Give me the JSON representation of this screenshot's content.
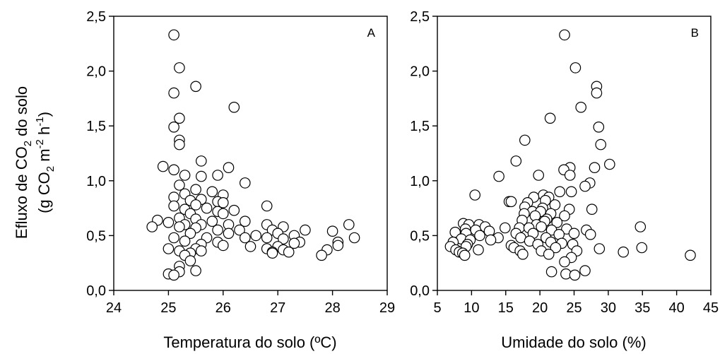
{
  "colors": {
    "marker_fill": "#ffffff",
    "marker_edge": "#000000",
    "axes": "#000000"
  },
  "ylabel": {
    "line1": {
      "prefix": "Efluxo de CO",
      "sub": "2",
      "suffix": " do solo"
    },
    "line2": {
      "open": "(g CO",
      "sub": "2",
      "mid1": " m",
      "sup1": "-2",
      "mid2": " h",
      "sup2": "-1",
      "close": ")"
    }
  },
  "chart_data": [
    {
      "type": "scatter",
      "panel": "A",
      "xlabel": "Temperatura do solo (ºC)",
      "xlim": [
        24,
        29
      ],
      "ylim": [
        0,
        2.5
      ],
      "xticks": [
        "24",
        "25",
        "26",
        "27",
        "28",
        "29"
      ],
      "yticks": [
        "0,0",
        "0,5",
        "1,0",
        "1,5",
        "2,0",
        "2,5"
      ],
      "grid": false,
      "points": [
        [
          25.1,
          2.33
        ],
        [
          25.2,
          2.03
        ],
        [
          25.1,
          1.8
        ],
        [
          25.5,
          1.86
        ],
        [
          26.2,
          1.67
        ],
        [
          25.2,
          1.57
        ],
        [
          25.1,
          1.49
        ],
        [
          25.2,
          1.37
        ],
        [
          25.2,
          1.33
        ],
        [
          25.6,
          1.18
        ],
        [
          24.9,
          1.13
        ],
        [
          25.1,
          1.1
        ],
        [
          25.3,
          1.05
        ],
        [
          25.6,
          1.04
        ],
        [
          25.9,
          1.05
        ],
        [
          26.1,
          1.12
        ],
        [
          26.4,
          0.98
        ],
        [
          25.2,
          0.96
        ],
        [
          25.5,
          0.92
        ],
        [
          25.8,
          0.9
        ],
        [
          25.3,
          0.88
        ],
        [
          26.0,
          0.87
        ],
        [
          25.1,
          0.85
        ],
        [
          25.6,
          0.83
        ],
        [
          25.4,
          0.82
        ],
        [
          25.9,
          0.81
        ],
        [
          26.0,
          0.8
        ],
        [
          25.1,
          0.77
        ],
        [
          25.5,
          0.78
        ],
        [
          25.7,
          0.75
        ],
        [
          25.3,
          0.74
        ],
        [
          26.2,
          0.73
        ],
        [
          26.8,
          0.77
        ],
        [
          25.9,
          0.72
        ],
        [
          25.4,
          0.7
        ],
        [
          26.0,
          0.7
        ],
        [
          25.2,
          0.66
        ],
        [
          24.8,
          0.64
        ],
        [
          25.5,
          0.65
        ],
        [
          25.8,
          0.63
        ],
        [
          26.4,
          0.63
        ],
        [
          25.0,
          0.62
        ],
        [
          25.3,
          0.6
        ],
        [
          25.6,
          0.6
        ],
        [
          26.1,
          0.6
        ],
        [
          26.8,
          0.6
        ],
        [
          27.1,
          0.58
        ],
        [
          28.3,
          0.6
        ],
        [
          24.7,
          0.58
        ],
        [
          25.2,
          0.58
        ],
        [
          25.5,
          0.57
        ],
        [
          25.9,
          0.55
        ],
        [
          26.3,
          0.55
        ],
        [
          26.9,
          0.55
        ],
        [
          27.0,
          0.52
        ],
        [
          27.5,
          0.55
        ],
        [
          28.0,
          0.54
        ],
        [
          25.4,
          0.52
        ],
        [
          26.1,
          0.52
        ],
        [
          26.6,
          0.5
        ],
        [
          27.3,
          0.5
        ],
        [
          25.1,
          0.48
        ],
        [
          25.7,
          0.48
        ],
        [
          26.4,
          0.48
        ],
        [
          26.8,
          0.48
        ],
        [
          27.1,
          0.47
        ],
        [
          28.4,
          0.48
        ],
        [
          25.3,
          0.45
        ],
        [
          25.9,
          0.44
        ],
        [
          27.4,
          0.44
        ],
        [
          27.3,
          0.43
        ],
        [
          28.1,
          0.44
        ],
        [
          25.6,
          0.42
        ],
        [
          26.0,
          0.41
        ],
        [
          26.5,
          0.4
        ],
        [
          27.0,
          0.4
        ],
        [
          28.1,
          0.41
        ],
        [
          25.0,
          0.38
        ],
        [
          25.5,
          0.38
        ],
        [
          26.8,
          0.38
        ],
        [
          27.1,
          0.37
        ],
        [
          27.9,
          0.37
        ],
        [
          25.2,
          0.36
        ],
        [
          25.6,
          0.36
        ],
        [
          26.9,
          0.35
        ],
        [
          27.2,
          0.35
        ],
        [
          25.4,
          0.34
        ],
        [
          26.9,
          0.34
        ],
        [
          27.8,
          0.32
        ],
        [
          25.3,
          0.32
        ],
        [
          25.4,
          0.27
        ],
        [
          25.2,
          0.22
        ],
        [
          25.0,
          0.15
        ],
        [
          25.2,
          0.17
        ],
        [
          25.5,
          0.18
        ],
        [
          25.1,
          0.14
        ]
      ]
    },
    {
      "type": "scatter",
      "panel": "B",
      "xlabel": "Umidade do solo (%)",
      "xlim": [
        5,
        45
      ],
      "ylim": [
        0,
        2.5
      ],
      "xticks": [
        "5",
        "10",
        "15",
        "20",
        "25",
        "30",
        "35",
        "40",
        "45"
      ],
      "yticks": [
        "0,0",
        "0,5",
        "1,0",
        "1,5",
        "2,0",
        "2,5"
      ],
      "grid": false,
      "points": [
        [
          23.6,
          2.33
        ],
        [
          25.2,
          2.03
        ],
        [
          28.3,
          1.86
        ],
        [
          28.3,
          1.8
        ],
        [
          26.0,
          1.67
        ],
        [
          21.5,
          1.57
        ],
        [
          28.6,
          1.49
        ],
        [
          17.8,
          1.37
        ],
        [
          28.9,
          1.33
        ],
        [
          16.5,
          1.18
        ],
        [
          30.2,
          1.15
        ],
        [
          24.4,
          1.12
        ],
        [
          23.5,
          1.1
        ],
        [
          28.0,
          1.12
        ],
        [
          19.8,
          1.05
        ],
        [
          24.4,
          1.05
        ],
        [
          14.0,
          1.04
        ],
        [
          27.3,
          0.98
        ],
        [
          26.6,
          0.95
        ],
        [
          22.9,
          0.9
        ],
        [
          24.6,
          0.9
        ],
        [
          20.5,
          0.87
        ],
        [
          21.3,
          0.85
        ],
        [
          10.5,
          0.87
        ],
        [
          19.1,
          0.85
        ],
        [
          20.8,
          0.82
        ],
        [
          15.5,
          0.81
        ],
        [
          15.8,
          0.81
        ],
        [
          18.2,
          0.8
        ],
        [
          22.2,
          0.78
        ],
        [
          17.8,
          0.76
        ],
        [
          20.4,
          0.75
        ],
        [
          24.3,
          0.74
        ],
        [
          27.6,
          0.74
        ],
        [
          18.9,
          0.72
        ],
        [
          20.1,
          0.72
        ],
        [
          21.6,
          0.7
        ],
        [
          17.7,
          0.7
        ],
        [
          19.3,
          0.68
        ],
        [
          23.6,
          0.68
        ],
        [
          21.0,
          0.65
        ],
        [
          17.4,
          0.64
        ],
        [
          20.7,
          0.63
        ],
        [
          22.5,
          0.62
        ],
        [
          19.5,
          0.6
        ],
        [
          8.8,
          0.61
        ],
        [
          9.6,
          0.6
        ],
        [
          11.1,
          0.6
        ],
        [
          12.0,
          0.58
        ],
        [
          14.9,
          0.57
        ],
        [
          17.0,
          0.57
        ],
        [
          18.4,
          0.57
        ],
        [
          20.2,
          0.58
        ],
        [
          21.7,
          0.55
        ],
        [
          23.9,
          0.56
        ],
        [
          26.8,
          0.55
        ],
        [
          34.7,
          0.58
        ],
        [
          9.1,
          0.56
        ],
        [
          10.6,
          0.55
        ],
        [
          12.6,
          0.54
        ],
        [
          7.6,
          0.53
        ],
        [
          9.2,
          0.52
        ],
        [
          16.5,
          0.52
        ],
        [
          19.0,
          0.52
        ],
        [
          22.8,
          0.51
        ],
        [
          25.0,
          0.52
        ],
        [
          27.4,
          0.51
        ],
        [
          11.2,
          0.5
        ],
        [
          13.9,
          0.48
        ],
        [
          17.2,
          0.48
        ],
        [
          20.9,
          0.48
        ],
        [
          8.5,
          0.47
        ],
        [
          9.8,
          0.46
        ],
        [
          12.8,
          0.46
        ],
        [
          18.5,
          0.45
        ],
        [
          21.6,
          0.44
        ],
        [
          23.2,
          0.43
        ],
        [
          7.3,
          0.44
        ],
        [
          9.4,
          0.42
        ],
        [
          15.8,
          0.41
        ],
        [
          19.7,
          0.42
        ],
        [
          24.8,
          0.42
        ],
        [
          6.9,
          0.4
        ],
        [
          9.2,
          0.4
        ],
        [
          16.2,
          0.39
        ],
        [
          22.3,
          0.39
        ],
        [
          28.7,
          0.38
        ],
        [
          34.9,
          0.39
        ],
        [
          7.7,
          0.37
        ],
        [
          11.0,
          0.37
        ],
        [
          17.1,
          0.36
        ],
        [
          20.2,
          0.36
        ],
        [
          25.4,
          0.36
        ],
        [
          32.2,
          0.35
        ],
        [
          8.2,
          0.35
        ],
        [
          8.7,
          0.34
        ],
        [
          17.5,
          0.33
        ],
        [
          21.3,
          0.33
        ],
        [
          9.0,
          0.32
        ],
        [
          42.0,
          0.32
        ],
        [
          24.6,
          0.3
        ],
        [
          23.6,
          0.26
        ],
        [
          21.7,
          0.17
        ],
        [
          26.6,
          0.18
        ],
        [
          23.8,
          0.15
        ],
        [
          25.1,
          0.14
        ]
      ]
    }
  ]
}
